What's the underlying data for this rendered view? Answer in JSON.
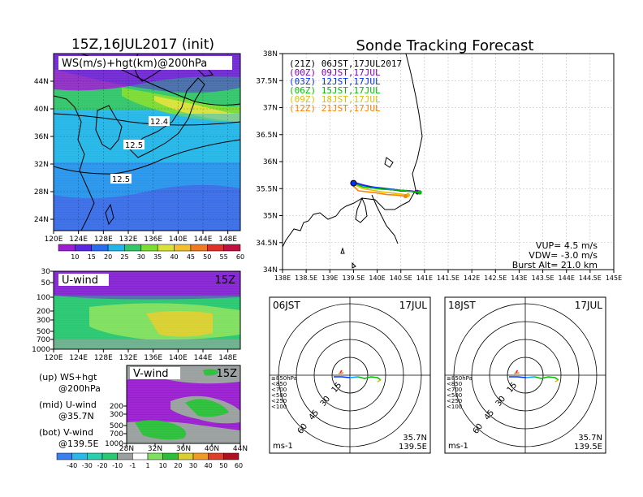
{
  "left_panel": {
    "title": "15Z,16JUL2017 (init)",
    "map_label": "WS(m/s)+hgt(km)@200hPa",
    "lat_ticks": [
      "44N",
      "40N",
      "36N",
      "32N",
      "28N",
      "24N"
    ],
    "lon_ticks": [
      "120E",
      "124E",
      "128E",
      "132E",
      "136E",
      "140E",
      "144E",
      "148E"
    ],
    "contour_labels": [
      "12.4",
      "12.5",
      "12.5"
    ],
    "ws_colorbar": [
      "10",
      "15",
      "20",
      "25",
      "30",
      "35",
      "40",
      "45",
      "50",
      "55",
      "60"
    ],
    "u_label": "U-wind",
    "u_time": "15Z",
    "v_label": "V-wind",
    "v_time": "15Z",
    "p_ticks": [
      "30",
      "50",
      "100",
      "200",
      "300",
      "500",
      "700",
      "1000"
    ],
    "v_lat_ticks": [
      "28N",
      "32N",
      "36N",
      "40N",
      "44N"
    ],
    "wind_colorbar": [
      "-40",
      "-30",
      "-20",
      "-10",
      "-1",
      "1",
      "10",
      "20",
      "30",
      "40",
      "50",
      "60"
    ],
    "legend_lines": [
      {
        "a": "(up) WS+hgt",
        "b": "@200hPa"
      },
      {
        "a": "(mid) U-wind",
        "b": "@35.7N"
      },
      {
        "a": "(bot) V-wind",
        "b": "@139.5E"
      }
    ]
  },
  "right_panel": {
    "title": "Sonde Tracking Forecast",
    "lat_ticks": [
      "38N",
      "37.5N",
      "37N",
      "36.5N",
      "36N",
      "35.5N",
      "35N",
      "34.5N",
      "34N"
    ],
    "lon_ticks": [
      "138E",
      "138.5E",
      "139E",
      "139.5E",
      "140E",
      "140.5E",
      "141E",
      "141.5E",
      "142E",
      "142.5E",
      "143E",
      "143.5E",
      "144E",
      "144.5E",
      "145E"
    ],
    "launches": [
      {
        "label": "(21Z) 06JST,17JUL2017",
        "color": "#000000"
      },
      {
        "label": "(00Z) 09JST,17JUL",
        "color": "#8000c0"
      },
      {
        "label": "(03Z) 12JST,17JUL",
        "color": "#0030ff"
      },
      {
        "label": "(06Z) 15JST,17JUL",
        "color": "#00c000"
      },
      {
        "label": "(09Z) 18JST,17JUL",
        "color": "#e0c000"
      },
      {
        "label": "(12Z) 21JST,17JUL",
        "color": "#ff8000"
      }
    ],
    "params": [
      "VUP= 4.5 m/s",
      "VDW= -3.0 m/s",
      "Burst Alt= 21.0 km"
    ]
  },
  "hodographs": [
    {
      "time": "06JST",
      "date": "17JUL",
      "unit": "ms-1",
      "lat": "35.7N",
      "lon": "139.5E",
      "rings": [
        "15",
        "30",
        "45",
        "60"
      ]
    },
    {
      "time": "18JST",
      "date": "17JUL",
      "unit": "ms-1",
      "lat": "35.7N",
      "lon": "139.5E",
      "rings": [
        "15",
        "30",
        "45",
        "60"
      ]
    }
  ],
  "hodo_levels": [
    {
      "label": "≥850hPa",
      "color": "#ff2020"
    },
    {
      "label": "<850",
      "color": "#ff8000"
    },
    {
      "label": "<700",
      "color": "#e0c000"
    },
    {
      "label": "<500",
      "color": "#00c000"
    },
    {
      "label": "<250",
      "color": "#00a0ff"
    },
    {
      "label": "<100",
      "color": "#0030ff"
    }
  ],
  "colors": {
    "ws_scale": [
      "#9b1fd0",
      "#5a28e0",
      "#2a6cf0",
      "#22b6e8",
      "#33c66a",
      "#7cdc34",
      "#d8e23a",
      "#f2bf2e",
      "#f07a22",
      "#e0302a",
      "#c01040"
    ],
    "wind_scale": [
      "#3a7ff0",
      "#2ab8e8",
      "#28d0b0",
      "#2ac870",
      "#9aa0a0",
      "#ffffff",
      "#7fe060",
      "#2bbf3a",
      "#d8d030",
      "#f09a28",
      "#e03e28",
      "#b01020"
    ]
  },
  "chart_data": [
    {
      "type": "heatmap",
      "title": "15Z,16JUL2017 (init)",
      "subtitle": "WS(m/s)+hgt(km)@200hPa",
      "x_range": [
        120,
        150
      ],
      "y_range": [
        22,
        47
      ],
      "colorbar": [
        10,
        15,
        20,
        25,
        30,
        35,
        40,
        45,
        50,
        55,
        60
      ],
      "contours": [
        12.4,
        12.5,
        12.5
      ]
    },
    {
      "type": "heatmap",
      "title": "U-wind",
      "x_range": [
        120,
        150
      ],
      "y_levels": [
        30,
        50,
        100,
        200,
        300,
        500,
        700,
        1000
      ]
    },
    {
      "type": "heatmap",
      "title": "V-wind",
      "x_range": [
        28,
        44
      ],
      "y_levels": [
        200,
        300,
        500,
        700,
        1000
      ],
      "colorbar": [
        -40,
        -30,
        -20,
        -10,
        -1,
        1,
        10,
        20,
        30,
        40,
        50,
        60
      ]
    },
    {
      "type": "line",
      "title": "Sonde Tracking Forecast",
      "x_range": [
        138,
        145
      ],
      "y_range": [
        34,
        38
      ],
      "launch_point": {
        "x": 139.5,
        "y": 35.6
      },
      "series": [
        {
          "name": "(21Z) 06JST,17JUL2017",
          "x": [
            139.5,
            139.7,
            139.9,
            140.1,
            140.3,
            140.5,
            140.7,
            140.85
          ],
          "y": [
            35.62,
            35.56,
            35.53,
            35.5,
            35.48,
            35.46,
            35.45,
            35.43
          ]
        },
        {
          "name": "(00Z) 09JST,17JUL",
          "x": [
            139.5,
            139.7,
            139.9,
            140.1,
            140.3,
            140.5,
            140.7,
            140.85
          ],
          "y": [
            35.62,
            35.57,
            35.53,
            35.5,
            35.48,
            35.47,
            35.46,
            35.44
          ]
        },
        {
          "name": "(03Z) 12JST,17JUL",
          "x": [
            139.5,
            139.7,
            139.9,
            140.1,
            140.3,
            140.5,
            140.7,
            140.9
          ],
          "y": [
            35.62,
            35.56,
            35.53,
            35.51,
            35.49,
            35.47,
            35.45,
            35.43
          ]
        },
        {
          "name": "(06Z) 15JST,17JUL",
          "x": [
            139.5,
            139.7,
            139.9,
            140.1,
            140.3,
            140.5,
            140.7,
            140.9
          ],
          "y": [
            35.6,
            35.53,
            35.51,
            35.49,
            35.48,
            35.47,
            35.45,
            35.43
          ]
        },
        {
          "name": "(09Z) 18JST,17JUL",
          "x": [
            139.5,
            139.7,
            139.9,
            140.1,
            140.3,
            140.5,
            140.65
          ],
          "y": [
            35.58,
            35.5,
            35.47,
            35.44,
            35.42,
            35.4,
            35.38
          ]
        },
        {
          "name": "(12Z) 21JST,17JUL",
          "x": [
            139.5,
            139.6,
            139.8,
            140.0,
            140.2,
            140.4,
            140.6
          ],
          "y": [
            35.55,
            35.46,
            35.44,
            35.42,
            35.39,
            35.38,
            35.36
          ]
        }
      ]
    }
  ]
}
